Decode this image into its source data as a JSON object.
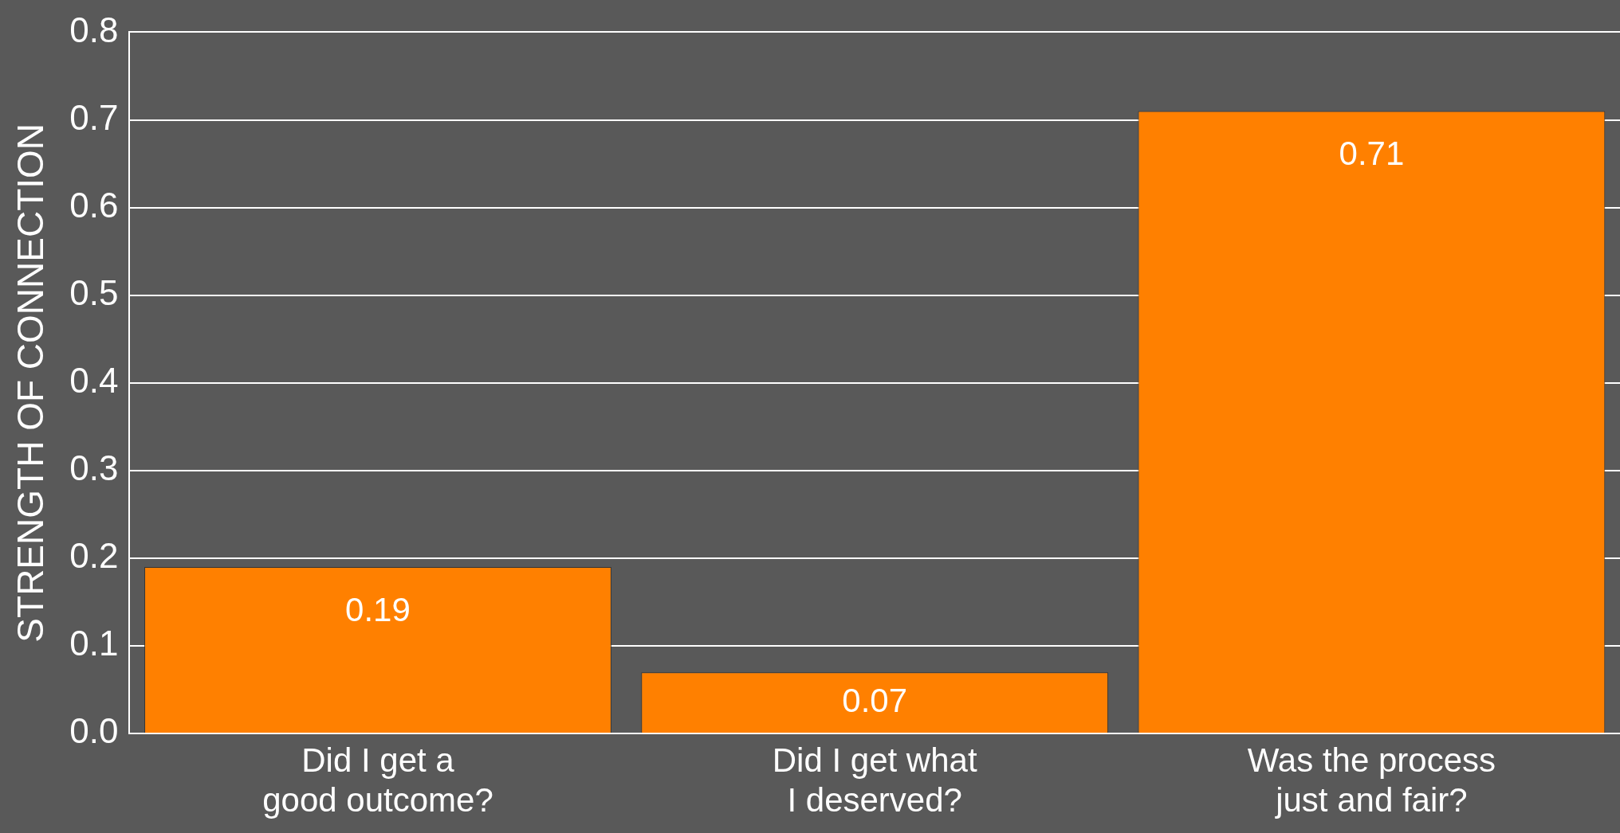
{
  "chart_data": {
    "type": "bar",
    "ylabel": "STRENGTH OF CONNECTION",
    "categories": [
      "Did I get a\ngood outcome?",
      "Did I get what\nI deserved?",
      "Was the process\njust and fair?"
    ],
    "values": [
      0.19,
      0.07,
      0.71
    ],
    "color": "#ff8000",
    "ylim": [
      0,
      0.8
    ],
    "yticks": [
      {
        "value": 0,
        "label": "0.0"
      },
      0.1,
      0.2,
      0.3,
      0.4,
      0.5,
      0.6,
      0.7,
      0.8
    ],
    "grid": "y",
    "data_labels": true,
    "legend": false
  }
}
